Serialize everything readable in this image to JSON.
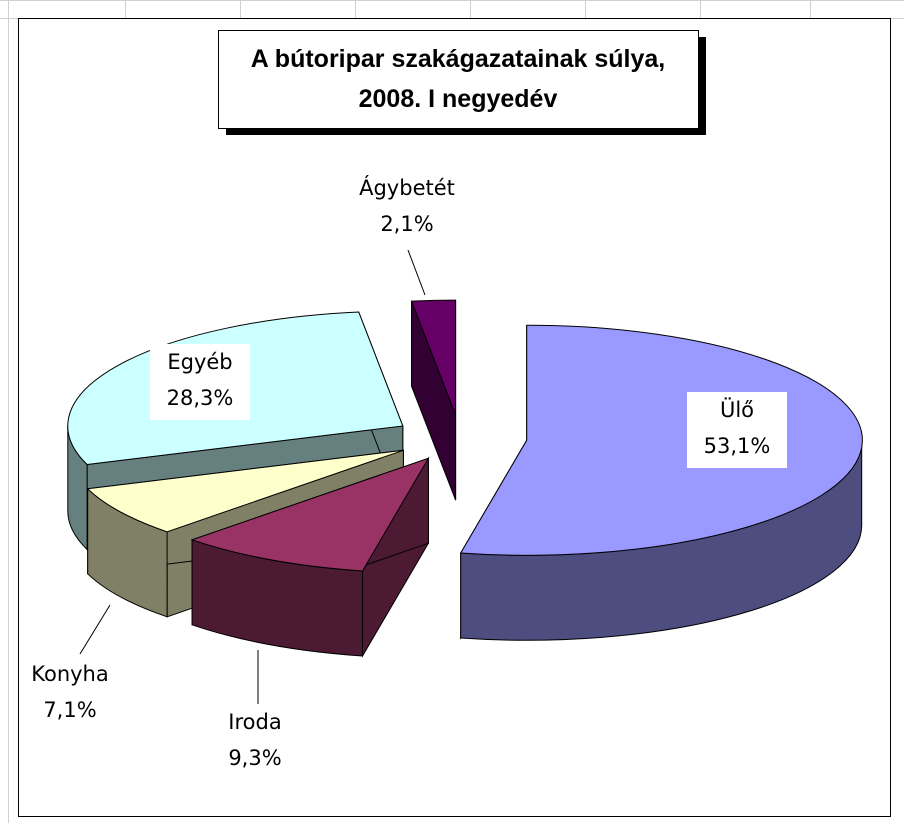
{
  "chart_data": {
    "type": "pie3d",
    "title": "A bútoripar szakágazatainak súlya, 2008. I negyedév",
    "categories": [
      "Ülő",
      "Iroda",
      "Konyha",
      "Egyéb",
      "Ágybetét"
    ],
    "values": [
      53.1,
      9.3,
      7.1,
      28.3,
      2.1
    ],
    "value_labels": [
      "53,1%",
      "9,3%",
      "7,1%",
      "28,3%",
      "2,1%"
    ],
    "colors": [
      "#9999ff",
      "#993366",
      "#ffffcc",
      "#ccffff",
      "#660066"
    ],
    "side_colors": [
      "#4d4d80",
      "#4d1a33",
      "#808066",
      "#668080",
      "#330033"
    ]
  }
}
